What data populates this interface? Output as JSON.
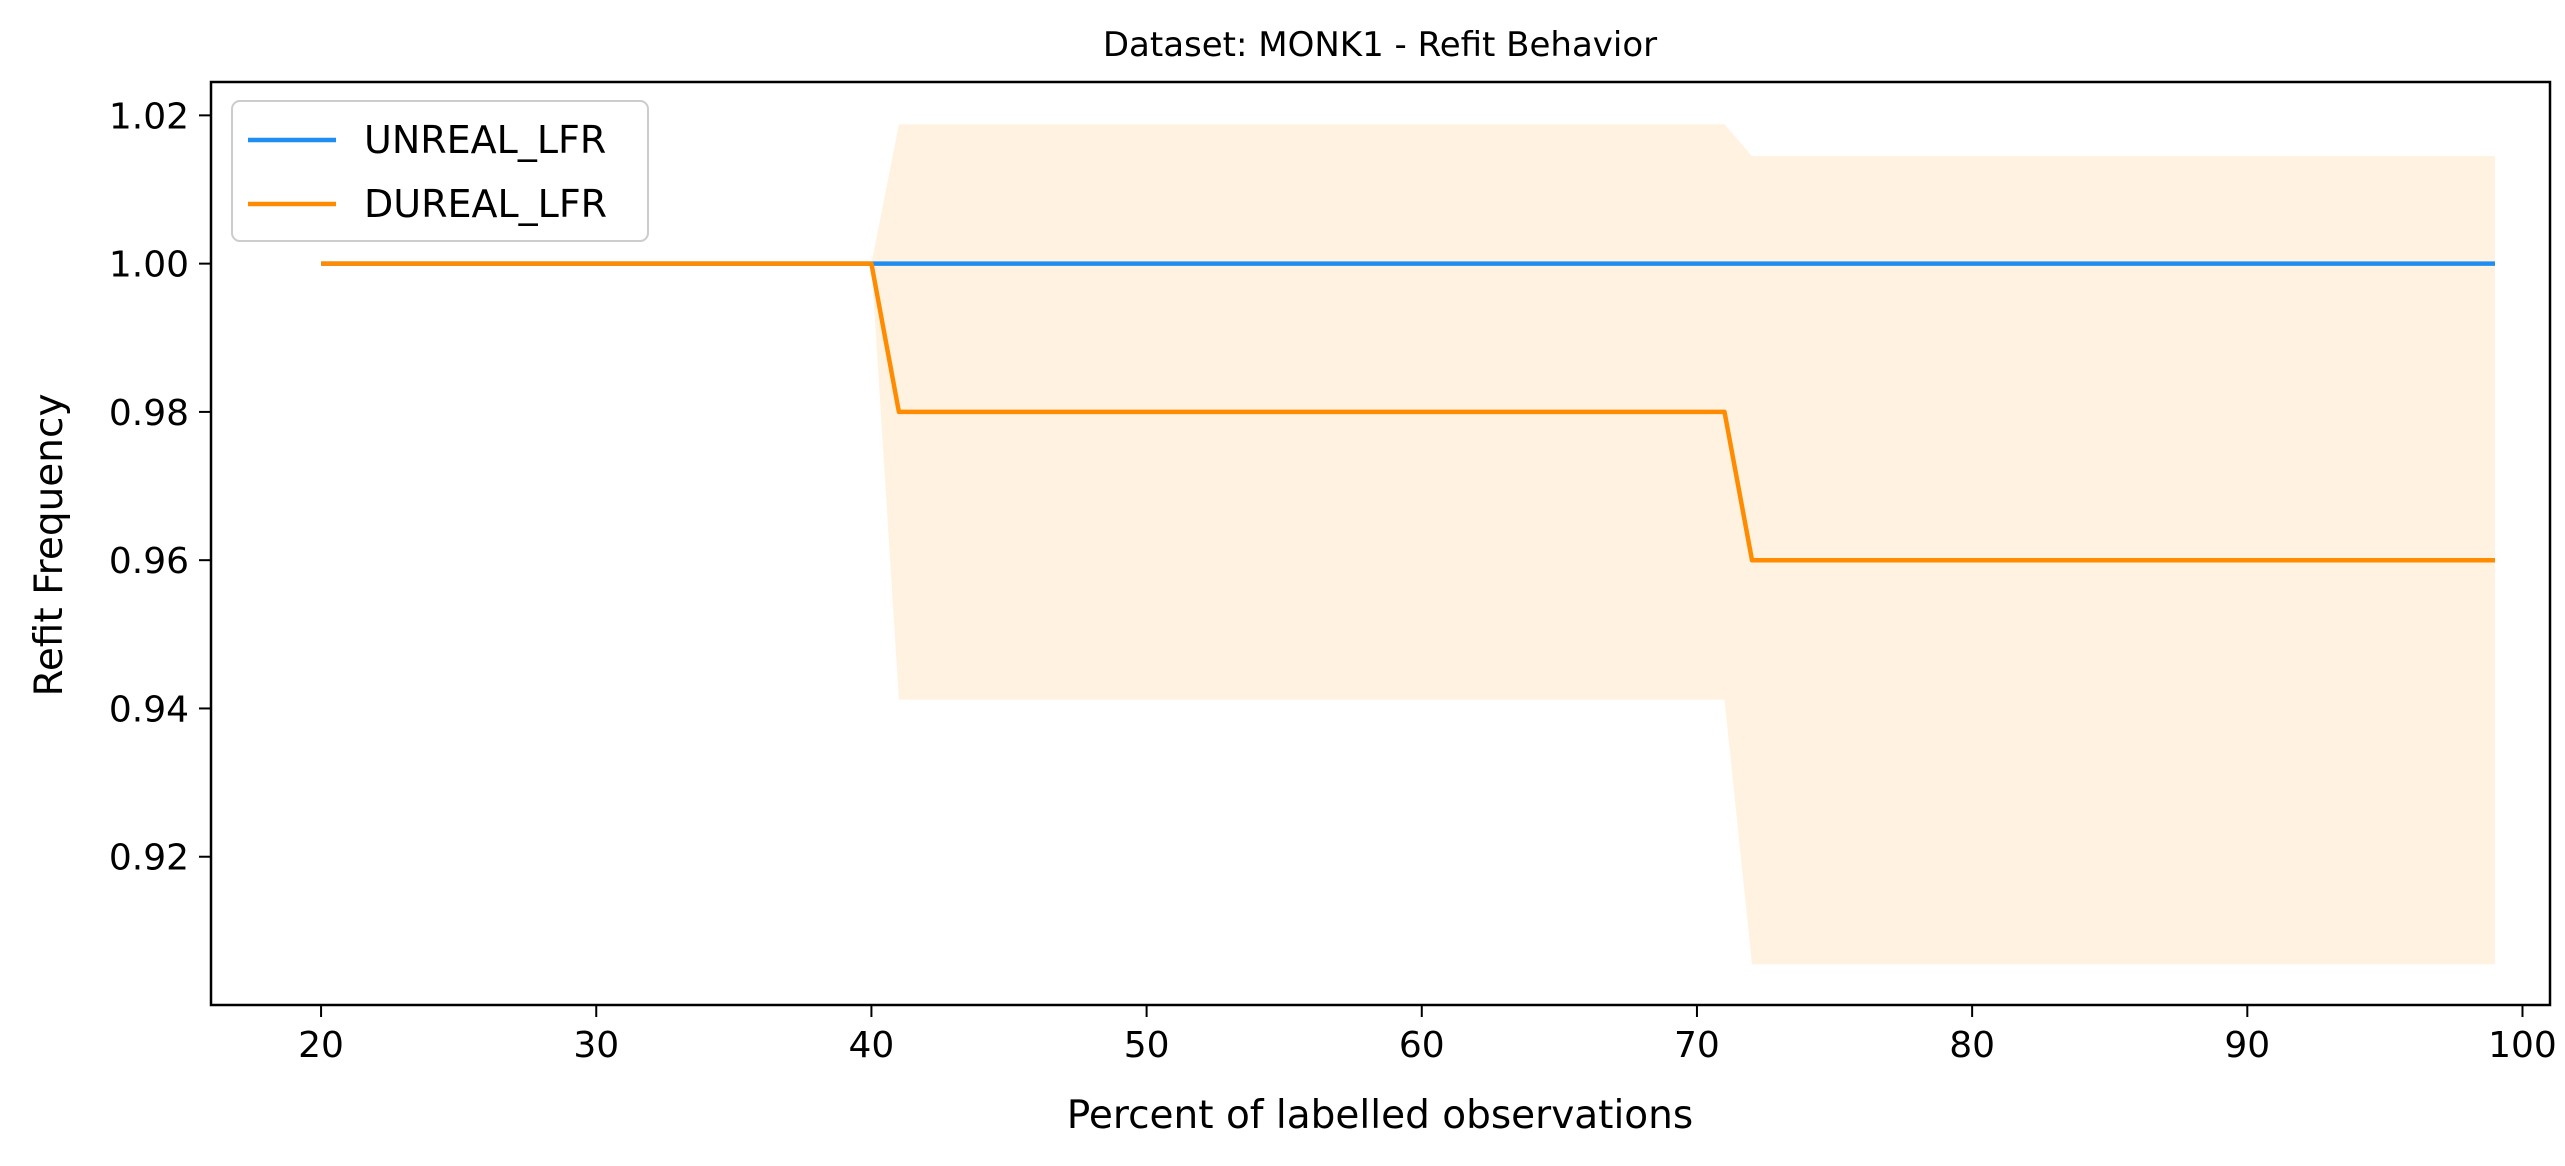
{
  "chart_data": {
    "type": "line",
    "title": "Dataset: MONK1 - Refit Behavior",
    "xlabel": "Percent of labelled observations",
    "ylabel": "Refit Frequency",
    "xlim": [
      16,
      101
    ],
    "ylim": [
      0.9,
      1.0245
    ],
    "xticks": [
      20,
      30,
      40,
      50,
      60,
      70,
      80,
      90,
      100
    ],
    "xtick_labels": [
      "20",
      "30",
      "40",
      "50",
      "60",
      "70",
      "80",
      "90",
      "100"
    ],
    "yticks": [
      0.92,
      0.94,
      0.96,
      0.98,
      1.0,
      1.02
    ],
    "ytick_labels": [
      "0.92",
      "0.94",
      "0.96",
      "0.98",
      "1.00",
      "1.02"
    ],
    "grid": false,
    "legend_position": "top-left",
    "series": [
      {
        "name": "UNREAL_LFR",
        "color": "#1f8ef1",
        "x": [
          20,
          99
        ],
        "y": [
          1.0,
          1.0
        ]
      },
      {
        "name": "DUREAL_LFR",
        "color": "#ff8c00",
        "x": [
          20,
          40,
          41,
          71,
          72,
          99
        ],
        "y": [
          1.0,
          1.0,
          0.98,
          0.98,
          0.96,
          0.96
        ],
        "band": {
          "color": "#fff2e0",
          "x": [
            20,
            40,
            41,
            71,
            72,
            99
          ],
          "lower": [
            1.0,
            1.0,
            0.9412,
            0.9412,
            0.9055,
            0.9055
          ],
          "upper": [
            1.0,
            1.0,
            1.0188,
            1.0188,
            1.0145,
            1.0145
          ]
        }
      }
    ]
  }
}
